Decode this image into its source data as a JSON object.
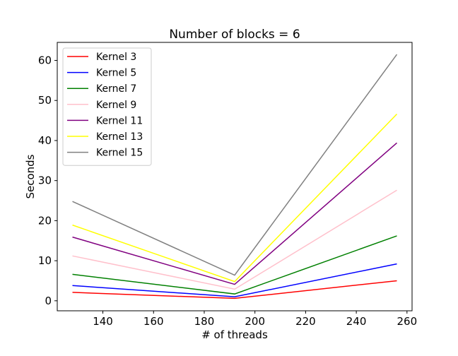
{
  "chart_data": {
    "type": "line",
    "title": "Number of blocks = 6",
    "xlabel": "# of threads",
    "ylabel": "Seconds",
    "xlim": [
      122,
      262
    ],
    "ylim": [
      -2.5,
      64.5
    ],
    "xticks": [
      140,
      160,
      180,
      200,
      220,
      240,
      260
    ],
    "yticks": [
      0,
      10,
      20,
      30,
      40,
      50,
      60
    ],
    "x": [
      128,
      192,
      256
    ],
    "legend_position": "top-left",
    "grid": false,
    "series": [
      {
        "name": "Kernel 3",
        "color": "#ff0000",
        "values": [
          2.1,
          0.6,
          5.0
        ]
      },
      {
        "name": "Kernel 5",
        "color": "#0000ff",
        "values": [
          3.8,
          1.0,
          9.2
        ]
      },
      {
        "name": "Kernel 7",
        "color": "#008000",
        "values": [
          6.6,
          1.7,
          16.2
        ]
      },
      {
        "name": "Kernel 9",
        "color": "#ffc0cb",
        "values": [
          11.2,
          2.9,
          27.6
        ]
      },
      {
        "name": "Kernel 11",
        "color": "#800080",
        "values": [
          15.9,
          4.1,
          39.4
        ]
      },
      {
        "name": "Kernel 13",
        "color": "#ffff00",
        "values": [
          18.9,
          4.8,
          46.6
        ]
      },
      {
        "name": "Kernel 15",
        "color": "#808080",
        "values": [
          24.8,
          6.4,
          61.5
        ]
      }
    ]
  }
}
